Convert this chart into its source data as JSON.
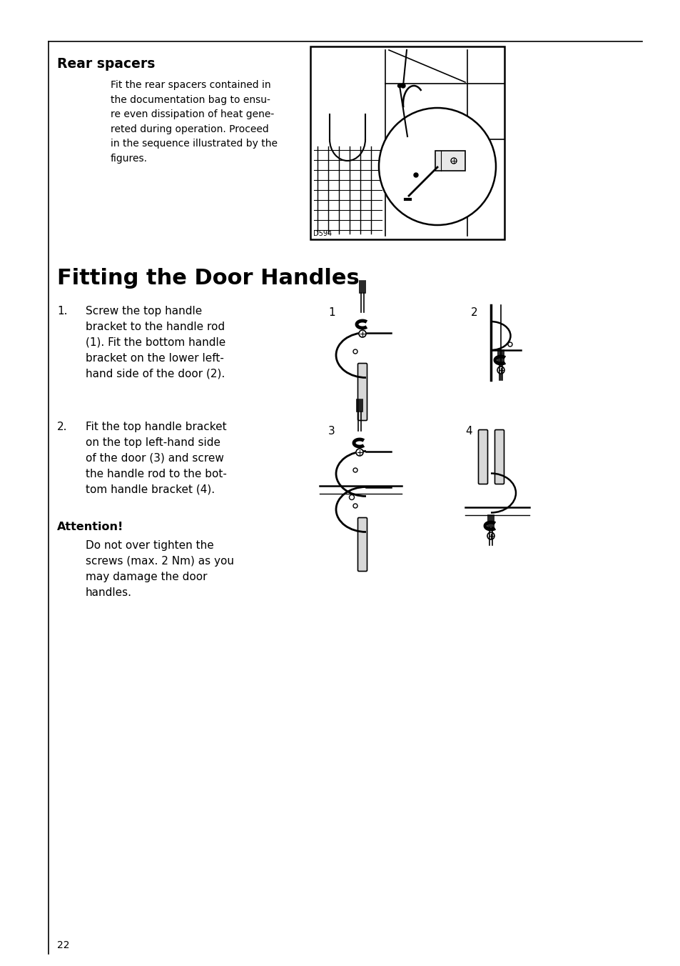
{
  "bg_color": "#ffffff",
  "page_number": "22",
  "section1_title": "Rear spacers",
  "section1_body": "Fit the rear spacers contained in\nthe documentation bag to ensu-\nre even dissipation of heat gene-\nreted during operation. Proceed\nin the sequence illustrated by the\nfigures.",
  "section2_title": "Fitting the Door Handles",
  "item1_num": "1.",
  "item1_text": "Screw the top handle\nbracket to the handle rod\n(1). Fit the bottom handle\nbracket on the lower left-\nhand side of the door (2).",
  "item2_num": "2.",
  "item2_text": "Fit the top handle bracket\non the top left-hand side\nof the door (3) and screw\nthe handle rod to the bot-\ntom handle bracket (4).",
  "attention_title": "Attention!",
  "attention_text": "Do not over tighten the\nscrews (max. 2 Nm) as you\nmay damage the door\nhandles.",
  "label1": "1",
  "label2": "2",
  "label3": "3",
  "label4": "4",
  "diagram_label": "D594"
}
